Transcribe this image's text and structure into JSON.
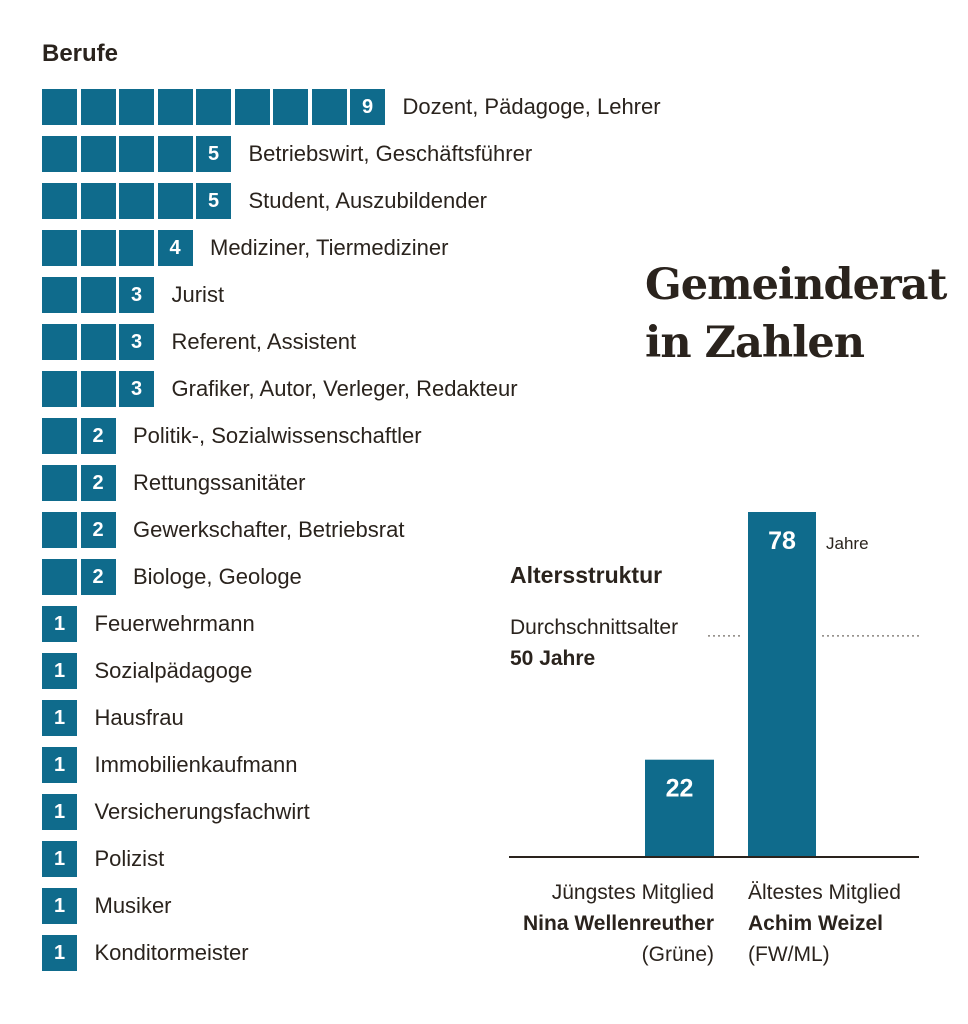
{
  "professions": {
    "title": "Berufe",
    "rows": [
      {
        "label": "Dozent, Pädagoge, Lehrer",
        "value": 9
      },
      {
        "label": "Betriebswirt, Geschäftsführer",
        "value": 5
      },
      {
        "label": "Student, Auszubildender",
        "value": 5
      },
      {
        "label": "Mediziner, Tiermediziner",
        "value": 4
      },
      {
        "label": "Jurist",
        "value": 3
      },
      {
        "label": "Referent, Assistent",
        "value": 3
      },
      {
        "label": "Grafiker, Autor, Verleger, Redakteur",
        "value": 3
      },
      {
        "label": "Politik-, Sozialwissenschaftler",
        "value": 2
      },
      {
        "label": "Rettungssanitäter",
        "value": 2
      },
      {
        "label": "Gewerkschafter, Betriebsrat",
        "value": 2
      },
      {
        "label": "Biologe, Geologe",
        "value": 2
      },
      {
        "label": "Feuerwehrmann",
        "value": 1
      },
      {
        "label": "Sozialpädagoge",
        "value": 1
      },
      {
        "label": "Hausfrau",
        "value": 1
      },
      {
        "label": "Immobilienkaufmann",
        "value": 1
      },
      {
        "label": "Versicherungsfachwirt",
        "value": 1
      },
      {
        "label": "Polizist",
        "value": 1
      },
      {
        "label": "Musiker",
        "value": 1
      },
      {
        "label": "Konditormeister",
        "value": 1
      }
    ]
  },
  "headline": {
    "line1": "Gemeinderat",
    "line2": "in Zahlen"
  },
  "age": {
    "title": "Altersstruktur",
    "average_label": "Durchschnittsalter",
    "average_value": "50 Jahre",
    "average": 50,
    "unit": "Jahre",
    "youngest": {
      "role": "Jüngstes Mitglied",
      "name": "Nina Wellenreuther",
      "party": "(Grüne)",
      "age": 22
    },
    "oldest": {
      "role": "Ältestes Mitglied",
      "name": "Achim Weizel",
      "party": "(FW/ML)",
      "age": 78
    }
  },
  "colors": {
    "bar": "#0f6b8c",
    "text": "#2a231d",
    "dots": "#8a857f"
  },
  "chart_data": [
    {
      "type": "bar",
      "title": "Berufe",
      "categories": [
        "Dozent, Pädagoge, Lehrer",
        "Betriebswirt, Geschäftsführer",
        "Student, Auszubildender",
        "Mediziner, Tiermediziner",
        "Jurist",
        "Referent, Assistent",
        "Grafiker, Autor, Verleger, Redakteur",
        "Politik-, Sozialwissenschaftler",
        "Rettungssanitäter",
        "Gewerkschafter, Betriebsrat",
        "Biologe, Geologe",
        "Feuerwehrmann",
        "Sozialpädagoge",
        "Hausfrau",
        "Immobilienkaufmann",
        "Versicherungsfachwirt",
        "Polizist",
        "Musiker",
        "Konditormeister"
      ],
      "values": [
        9,
        5,
        5,
        4,
        3,
        3,
        3,
        2,
        2,
        2,
        2,
        1,
        1,
        1,
        1,
        1,
        1,
        1,
        1
      ],
      "orientation": "horizontal"
    },
    {
      "type": "bar",
      "title": "Altersstruktur",
      "categories": [
        "Jüngstes Mitglied",
        "Ältestes Mitglied"
      ],
      "values": [
        22,
        78
      ],
      "reference_line": 50,
      "ylabel": "Jahre",
      "grid": false
    }
  ]
}
